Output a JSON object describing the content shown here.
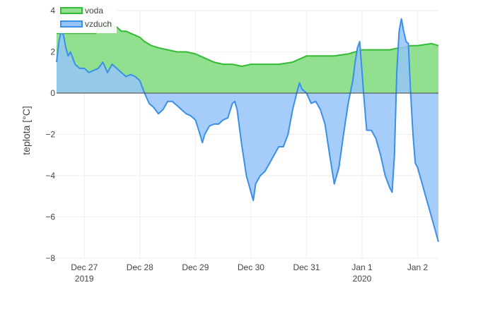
{
  "chart_data": {
    "type": "area",
    "title": "",
    "xlabel": "",
    "ylabel": "teplota [°C]",
    "ylim": [
      -8.0,
      4.0
    ],
    "xlim": [
      "2019-12-26 12:00",
      "2020-01-02 09:00"
    ],
    "y_ticks": [
      -8,
      -6,
      -4,
      -2,
      0,
      2,
      4
    ],
    "y_tick_labels": [
      "−8",
      "−6",
      "−4",
      "−2",
      "0",
      "2",
      "4"
    ],
    "x_ticks": [
      {
        "x": "2019-12-27",
        "label": "Dec 27",
        "sublabel": "2019"
      },
      {
        "x": "2019-12-28",
        "label": "Dec 28",
        "sublabel": ""
      },
      {
        "x": "2019-12-29",
        "label": "Dec 29",
        "sublabel": ""
      },
      {
        "x": "2019-12-30",
        "label": "Dec 30",
        "sublabel": ""
      },
      {
        "x": "2019-12-31",
        "label": "Dec 31",
        "sublabel": ""
      },
      {
        "x": "2020-01-01",
        "label": "Jan 1",
        "sublabel": "2020"
      },
      {
        "x": "2020-01-02",
        "label": "Jan 2",
        "sublabel": ""
      }
    ],
    "grid": true,
    "legend_position": "top-left",
    "fill_to": "zero",
    "series": [
      {
        "name": "voda",
        "color": "#33bb33",
        "fill": "#90e090",
        "points": [
          [
            "2019-12-26 12:00",
            2.9
          ],
          [
            "2019-12-27 05:00",
            2.9
          ],
          [
            "2019-12-27 06:00",
            3.2
          ],
          [
            "2019-12-27 09:00",
            3.2
          ],
          [
            "2019-12-27 11:00",
            3.5
          ],
          [
            "2019-12-27 12:00",
            3.3
          ],
          [
            "2019-12-27 14:00",
            3.2
          ],
          [
            "2019-12-27 16:00",
            3.0
          ],
          [
            "2019-12-27 18:00",
            3.0
          ],
          [
            "2019-12-27 20:00",
            2.9
          ],
          [
            "2019-12-27 22:00",
            2.8
          ],
          [
            "2019-12-28 00:00",
            2.7
          ],
          [
            "2019-12-28 02:00",
            2.5
          ],
          [
            "2019-12-28 05:00",
            2.3
          ],
          [
            "2019-12-28 08:00",
            2.2
          ],
          [
            "2019-12-28 12:00",
            2.1
          ],
          [
            "2019-12-28 16:00",
            2.0
          ],
          [
            "2019-12-28 20:00",
            2.0
          ],
          [
            "2019-12-29 00:00",
            1.9
          ],
          [
            "2019-12-29 04:00",
            1.7
          ],
          [
            "2019-12-29 08:00",
            1.5
          ],
          [
            "2019-12-29 12:00",
            1.4
          ],
          [
            "2019-12-29 16:00",
            1.4
          ],
          [
            "2019-12-29 20:00",
            1.3
          ],
          [
            "2019-12-30 00:00",
            1.4
          ],
          [
            "2019-12-30 06:00",
            1.4
          ],
          [
            "2019-12-30 12:00",
            1.4
          ],
          [
            "2019-12-30 18:00",
            1.5
          ],
          [
            "2019-12-31 00:00",
            1.8
          ],
          [
            "2019-12-31 06:00",
            1.8
          ],
          [
            "2019-12-31 12:00",
            1.8
          ],
          [
            "2019-12-31 18:00",
            1.9
          ],
          [
            "2020-01-01 00:00",
            2.1
          ],
          [
            "2020-01-01 06:00",
            2.1
          ],
          [
            "2020-01-01 12:00",
            2.1
          ],
          [
            "2020-01-01 16:00",
            2.2
          ],
          [
            "2020-01-01 18:00",
            2.2
          ],
          [
            "2020-01-01 21:00",
            2.3
          ],
          [
            "2020-01-02 00:00",
            2.3
          ],
          [
            "2020-01-02 06:00",
            2.4
          ],
          [
            "2020-01-02 09:00",
            2.3
          ]
        ]
      },
      {
        "name": "vzduch",
        "color": "#3a8fe6",
        "fill": "#96c4f8",
        "points": [
          [
            "2019-12-26 12:00",
            1.5
          ],
          [
            "2019-12-26 13:00",
            2.5
          ],
          [
            "2019-12-26 14:00",
            3.0
          ],
          [
            "2019-12-26 15:00",
            2.8
          ],
          [
            "2019-12-26 16:00",
            2.2
          ],
          [
            "2019-12-26 17:00",
            1.8
          ],
          [
            "2019-12-26 18:00",
            2.0
          ],
          [
            "2019-12-26 20:00",
            1.4
          ],
          [
            "2019-12-26 22:00",
            1.2
          ],
          [
            "2019-12-27 00:00",
            1.2
          ],
          [
            "2019-12-27 02:00",
            1.0
          ],
          [
            "2019-12-27 04:00",
            1.1
          ],
          [
            "2019-12-27 06:00",
            1.2
          ],
          [
            "2019-12-27 08:00",
            1.5
          ],
          [
            "2019-12-27 10:00",
            1.0
          ],
          [
            "2019-12-27 12:00",
            1.4
          ],
          [
            "2019-12-27 14:00",
            1.2
          ],
          [
            "2019-12-27 16:00",
            1.0
          ],
          [
            "2019-12-27 18:00",
            0.8
          ],
          [
            "2019-12-27 20:00",
            0.9
          ],
          [
            "2019-12-27 22:00",
            0.8
          ],
          [
            "2019-12-28 00:00",
            0.6
          ],
          [
            "2019-12-28 02:00",
            0.0
          ],
          [
            "2019-12-28 04:00",
            -0.5
          ],
          [
            "2019-12-28 06:00",
            -0.7
          ],
          [
            "2019-12-28 08:00",
            -1.0
          ],
          [
            "2019-12-28 10:00",
            -0.8
          ],
          [
            "2019-12-28 12:00",
            -0.4
          ],
          [
            "2019-12-28 14:00",
            -0.4
          ],
          [
            "2019-12-28 16:00",
            -0.6
          ],
          [
            "2019-12-28 18:00",
            -0.8
          ],
          [
            "2019-12-28 20:00",
            -1.0
          ],
          [
            "2019-12-28 22:00",
            -1.1
          ],
          [
            "2019-12-29 00:00",
            -1.3
          ],
          [
            "2019-12-29 02:00",
            -2.0
          ],
          [
            "2019-12-29 03:00",
            -2.4
          ],
          [
            "2019-12-29 04:00",
            -2.0
          ],
          [
            "2019-12-29 06:00",
            -1.6
          ],
          [
            "2019-12-29 08:00",
            -1.5
          ],
          [
            "2019-12-29 10:00",
            -1.5
          ],
          [
            "2019-12-29 12:00",
            -1.3
          ],
          [
            "2019-12-29 14:00",
            -1.2
          ],
          [
            "2019-12-29 16:00",
            -0.5
          ],
          [
            "2019-12-29 17:00",
            -0.4
          ],
          [
            "2019-12-29 18:00",
            -0.8
          ],
          [
            "2019-12-29 20:00",
            -2.5
          ],
          [
            "2019-12-29 22:00",
            -4.0
          ],
          [
            "2019-12-30 00:00",
            -4.8
          ],
          [
            "2019-12-30 01:00",
            -5.2
          ],
          [
            "2019-12-30 02:00",
            -4.4
          ],
          [
            "2019-12-30 04:00",
            -4.0
          ],
          [
            "2019-12-30 06:00",
            -3.8
          ],
          [
            "2019-12-30 08:00",
            -3.4
          ],
          [
            "2019-12-30 10:00",
            -3.0
          ],
          [
            "2019-12-30 12:00",
            -2.6
          ],
          [
            "2019-12-30 14:00",
            -2.6
          ],
          [
            "2019-12-30 16:00",
            -2.0
          ],
          [
            "2019-12-30 18:00",
            -0.8
          ],
          [
            "2019-12-30 20:00",
            0.1
          ],
          [
            "2019-12-30 21:00",
            0.5
          ],
          [
            "2019-12-30 22:00",
            0.2
          ],
          [
            "2019-12-31 00:00",
            0.0
          ],
          [
            "2019-12-31 02:00",
            -0.5
          ],
          [
            "2019-12-31 04:00",
            -0.4
          ],
          [
            "2019-12-31 06:00",
            -0.8
          ],
          [
            "2019-12-31 08:00",
            -1.5
          ],
          [
            "2019-12-31 10:00",
            -3.0
          ],
          [
            "2019-12-31 12:00",
            -4.4
          ],
          [
            "2019-12-31 14:00",
            -3.6
          ],
          [
            "2019-12-31 16:00",
            -2.0
          ],
          [
            "2019-12-31 18:00",
            -0.5
          ],
          [
            "2019-12-31 20:00",
            0.6
          ],
          [
            "2019-12-31 21:00",
            1.5
          ],
          [
            "2019-12-31 22:00",
            2.2
          ],
          [
            "2019-12-31 23:00",
            2.5
          ],
          [
            "2020-01-01 00:00",
            1.0
          ],
          [
            "2020-01-01 01:00",
            -0.5
          ],
          [
            "2020-01-01 02:00",
            -1.8
          ],
          [
            "2020-01-01 04:00",
            -1.8
          ],
          [
            "2020-01-01 06:00",
            -2.2
          ],
          [
            "2020-01-01 08:00",
            -3.0
          ],
          [
            "2020-01-01 10:00",
            -4.0
          ],
          [
            "2020-01-01 12:00",
            -4.6
          ],
          [
            "2020-01-01 13:00",
            -4.8
          ],
          [
            "2020-01-01 14:00",
            -3.0
          ],
          [
            "2020-01-01 15:00",
            1.0
          ],
          [
            "2020-01-01 16:00",
            3.0
          ],
          [
            "2020-01-01 17:00",
            3.6
          ],
          [
            "2020-01-01 18:00",
            3.0
          ],
          [
            "2020-01-01 19:00",
            2.5
          ],
          [
            "2020-01-01 20:00",
            2.4
          ],
          [
            "2020-01-01 21:00",
            0.0
          ],
          [
            "2020-01-01 22:00",
            -2.0
          ],
          [
            "2020-01-01 23:00",
            -3.4
          ],
          [
            "2020-01-02 00:00",
            -3.6
          ],
          [
            "2020-01-02 02:00",
            -4.4
          ],
          [
            "2020-01-02 04:00",
            -5.2
          ],
          [
            "2020-01-02 06:00",
            -6.0
          ],
          [
            "2020-01-02 08:00",
            -6.8
          ],
          [
            "2020-01-02 09:00",
            -7.2
          ]
        ]
      }
    ]
  }
}
